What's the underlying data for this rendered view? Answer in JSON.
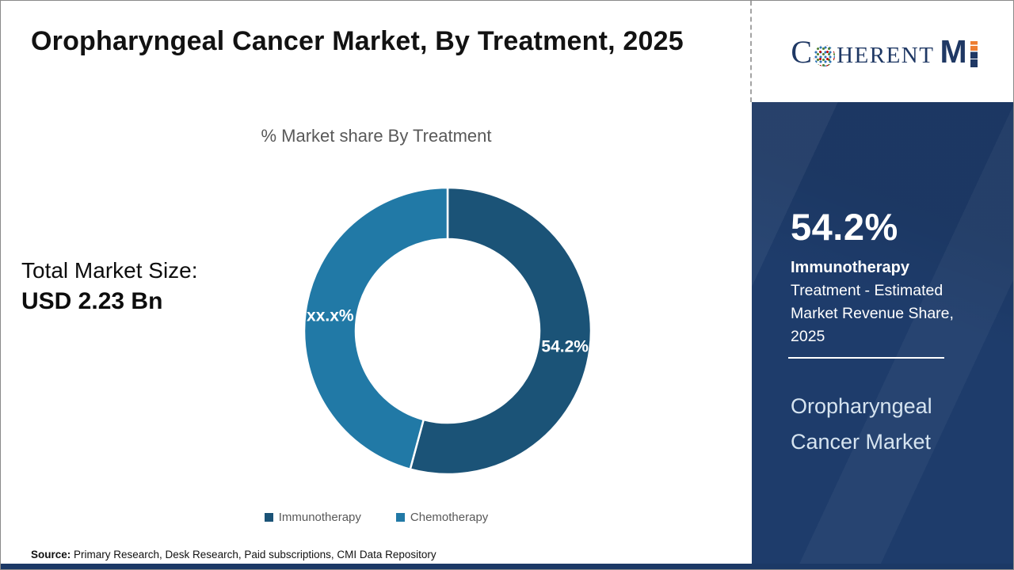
{
  "header": {
    "title": "Oropharyngeal Cancer Market, By Treatment, 2025"
  },
  "logo": {
    "c": "C",
    "herent": "HERENT",
    "m": "M",
    "alt": "CoherentMI",
    "navy": "#1f3864",
    "orange": "#ed7d31"
  },
  "left_stat": {
    "label": "Total Market Size:",
    "value": "USD 2.23 Bn"
  },
  "chart_data": {
    "type": "pie",
    "subtype": "donut",
    "title": "% Market share By Treatment",
    "categories": [
      "Immunotherapy",
      "Chemotherapy"
    ],
    "values": [
      54.2,
      45.8
    ],
    "slice_labels": [
      "54.2%",
      "xx.x%"
    ],
    "colors": [
      "#1b5377",
      "#2179a6"
    ],
    "start_angle_deg": 0,
    "direction": "clockwise",
    "inner_radius_ratio": 0.64,
    "legend_position": "bottom",
    "label_color": "#ffffff"
  },
  "sidebar": {
    "stat_value": "54.2%",
    "stat_category": "Immunotherapy",
    "stat_description": "Treatment - Estimated Market Revenue Share, 2025",
    "panel_title": "Oropharyngeal Cancer Market",
    "bg_color": "#1e3c6b"
  },
  "footer": {
    "source_label": "Source:",
    "source_text": " Primary Research, Desk Research, Paid subscriptions, CMI Data Repository"
  }
}
